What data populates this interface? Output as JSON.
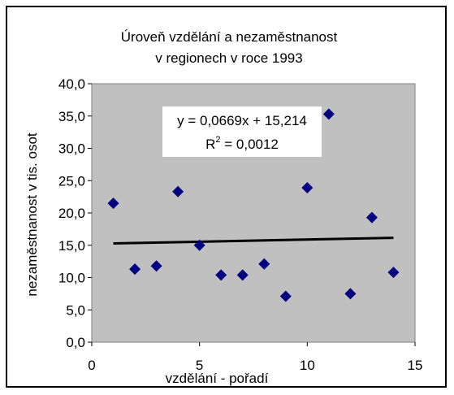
{
  "chart_data": {
    "type": "scatter",
    "title": [
      "Úroveň vzdělání a nezaměstnanost",
      "v regionech v roce 1993"
    ],
    "xlabel": "vzdělání - pořadí",
    "ylabel": "nezaměstnanost v tis. osot",
    "xlim": [
      0,
      15
    ],
    "ylim": [
      0,
      40
    ],
    "x_ticks": [
      "0",
      "5",
      "10",
      "15"
    ],
    "y_ticks": [
      "0,0",
      "5,0",
      "10,0",
      "15,0",
      "20,0",
      "25,0",
      "30,0",
      "35,0",
      "40,0"
    ],
    "grid": false,
    "plot_background": "#c0c0c0",
    "marker_color": "#000080",
    "trendline_color": "#000000",
    "points": [
      {
        "x": 1,
        "y": 21.5
      },
      {
        "x": 2,
        "y": 11.3
      },
      {
        "x": 3,
        "y": 11.8
      },
      {
        "x": 4,
        "y": 23.3
      },
      {
        "x": 5,
        "y": 15.0
      },
      {
        "x": 6,
        "y": 10.4
      },
      {
        "x": 7,
        "y": 10.4
      },
      {
        "x": 8,
        "y": 12.1
      },
      {
        "x": 9,
        "y": 7.1
      },
      {
        "x": 10,
        "y": 23.9
      },
      {
        "x": 11,
        "y": 35.3
      },
      {
        "x": 12,
        "y": 7.5
      },
      {
        "x": 13,
        "y": 19.3
      },
      {
        "x": 14,
        "y": 10.8
      }
    ],
    "trendline": {
      "slope": 0.0669,
      "intercept": 15.214,
      "x_range": [
        1,
        14
      ],
      "equation": "y = 0,0669x + 15,214",
      "r2_prefix": "R",
      "r2_sup": "2",
      "r2_suffix": " = 0,0012"
    }
  }
}
